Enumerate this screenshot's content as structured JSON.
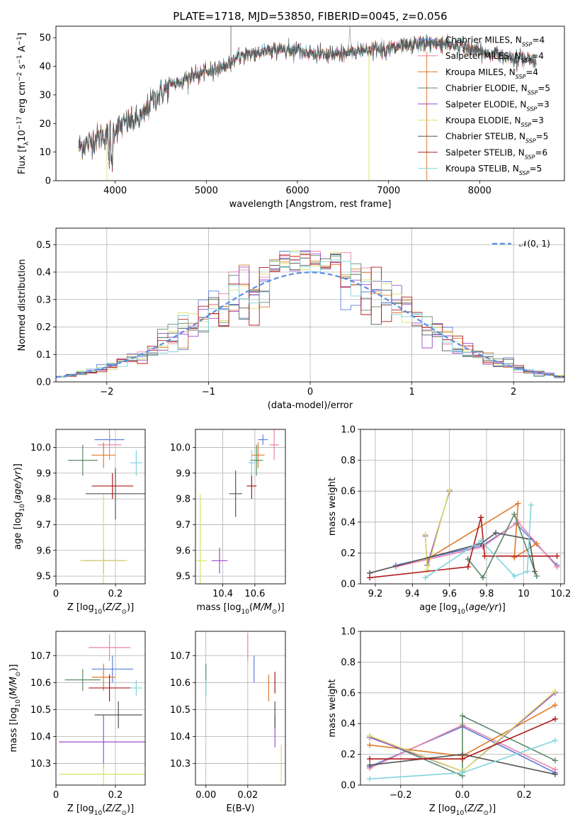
{
  "title": "PLATE=1718, MJD=53850, FIBERID=0045, z=0.056",
  "colors": {
    "Chabrier MILES": "#5b7fdc",
    "Salpeter MILES": "#ee82a8",
    "Kroupa MILES": "#e07a2a",
    "Chabrier ELODIE": "#5b8a68",
    "Salpeter ELODIE": "#9c4ec8",
    "Kroupa ELODIE": "#d8e06a",
    "Chabrier STELIB": "#555555",
    "Salpeter STELIB": "#b01818",
    "Kroupa STELIB": "#80d4de",
    "gauss": "#5b8ee6"
  },
  "chart_data": [
    {
      "type": "line",
      "id": "spectrum",
      "title": "PLATE=1718, MJD=53850, FIBERID=0045, z=0.056",
      "xlabel": "wavelength [Angstrom, rest frame]",
      "ylabel_parts": [
        "Flux [f",
        "λ",
        "10",
        "-17",
        " erg cm",
        "-2",
        " s",
        "-1",
        " A",
        "-1",
        "]"
      ],
      "xlim": [
        3350,
        8930
      ],
      "ylim": [
        0,
        54
      ],
      "xticks": [
        4000,
        5000,
        6000,
        7000,
        8000
      ],
      "yticks": [
        0,
        10,
        20,
        30,
        40,
        50
      ],
      "legend_position": "upper right",
      "legend": [
        {
          "label": "Chabrier MILES",
          "nssp": "4"
        },
        {
          "label": "Salpeter MILES",
          "nssp": "4"
        },
        {
          "label": "Kroupa MILES",
          "nssp": "4"
        },
        {
          "label": "Chabrier ELODIE",
          "nssp": "5"
        },
        {
          "label": "Salpeter ELODIE",
          "nssp": "3"
        },
        {
          "label": "Kroupa ELODIE",
          "nssp": "3"
        },
        {
          "label": "Chabrier STELIB",
          "nssp": "5"
        },
        {
          "label": "Salpeter STELIB",
          "nssp": "6"
        },
        {
          "label": "Kroupa STELIB",
          "nssp": "5"
        }
      ],
      "continuum_x": [
        3600,
        3700,
        3800,
        3900,
        4000,
        4100,
        4200,
        4300,
        4400,
        4600,
        4800,
        5000,
        5200,
        5400,
        5600,
        5800,
        6000,
        6200,
        6400,
        6600,
        6800,
        7000,
        7200,
        7400,
        7600,
        7800,
        8000,
        8200,
        8400,
        8600
      ],
      "continuum_y": [
        12,
        13,
        15,
        16,
        18,
        20,
        21,
        22,
        28,
        33,
        36,
        38,
        40,
        44,
        45,
        46,
        46,
        44,
        44,
        45,
        46,
        46,
        47,
        48,
        48,
        47,
        45,
        44,
        43,
        42
      ],
      "spectrum_range": [
        3600,
        8620
      ]
    },
    {
      "type": "histogram",
      "id": "residuals",
      "xlabel": "(data-model)/error",
      "ylabel": "Normed distribution",
      "xlim": [
        -2.5,
        2.5
      ],
      "ylim": [
        0,
        0.56
      ],
      "xticks": [
        -2,
        -1,
        0,
        1,
        2
      ],
      "yticks": [
        0.0,
        0.1,
        0.2,
        0.3,
        0.4,
        0.5
      ],
      "grid": true,
      "legend_position": "upper right",
      "legend": [
        "𝒩(0, 1)"
      ]
    },
    {
      "type": "scatter",
      "id": "age_vs_Z",
      "xlabel": "Z [log10(Z/Z⊙)]",
      "ylabel": "age  [log10(age/yr)]",
      "xlim": [
        0.0,
        0.3
      ],
      "ylim": [
        9.47,
        10.07
      ],
      "xticks": [
        0.0,
        0.2
      ],
      "yticks": [
        9.5,
        9.6,
        9.7,
        9.8,
        9.9,
        10.0
      ],
      "grid": true,
      "points": [
        {
          "series": "Chabrier MILES",
          "x": 0.18,
          "y": 10.03,
          "xerr": 0.05,
          "yerr": 0.02
        },
        {
          "series": "Salpeter MILES",
          "x": 0.18,
          "y": 10.01,
          "xerr": 0.04,
          "yerr": 0.06
        },
        {
          "series": "Kroupa MILES",
          "x": 0.16,
          "y": 9.97,
          "xerr": 0.04,
          "yerr": 0.05
        },
        {
          "series": "Chabrier ELODIE",
          "x": 0.09,
          "y": 9.95,
          "xerr": 0.05,
          "yerr": 0.06
        },
        {
          "series": "Salpeter ELODIE",
          "x": 0.16,
          "y": 9.56,
          "xerr": 0.07,
          "yerr": 0.05
        },
        {
          "series": "Kroupa ELODIE",
          "x": 0.16,
          "y": 9.56,
          "xerr": 0.08,
          "yerr": 0.26
        },
        {
          "series": "Chabrier STELIB",
          "x": 0.2,
          "y": 9.82,
          "xerr": 0.1,
          "yerr": 0.1
        },
        {
          "series": "Salpeter STELIB",
          "x": 0.19,
          "y": 9.85,
          "xerr": 0.07,
          "yerr": 0.05
        },
        {
          "series": "Kroupa STELIB",
          "x": 0.27,
          "y": 9.94,
          "xerr": 0.02,
          "yerr": 0.05
        }
      ]
    },
    {
      "type": "scatter",
      "id": "age_vs_mass",
      "xlabel": "mass [log10(M/M⊙)]",
      "ylabel": "",
      "xlim": [
        10.23,
        10.79
      ],
      "ylim": [
        9.47,
        10.07
      ],
      "xticks": [
        10.4,
        10.6
      ],
      "xticklabels": [
        "10.4",
        "10.6"
      ],
      "yticks": [
        9.5,
        9.6,
        9.7,
        9.8,
        9.9,
        10.0
      ],
      "grid": true,
      "points": [
        {
          "series": "Chabrier MILES",
          "x": 10.65,
          "y": 10.03,
          "xerr": 0.03,
          "yerr": 0.02
        },
        {
          "series": "Salpeter MILES",
          "x": 10.72,
          "y": 10.01,
          "xerr": 0.03,
          "yerr": 0.06
        },
        {
          "series": "Kroupa MILES",
          "x": 10.62,
          "y": 9.97,
          "xerr": 0.04,
          "yerr": 0.05
        },
        {
          "series": "Chabrier ELODIE",
          "x": 10.61,
          "y": 9.95,
          "xerr": 0.04,
          "yerr": 0.06
        },
        {
          "series": "Salpeter ELODIE",
          "x": 10.38,
          "y": 9.56,
          "xerr": 0.05,
          "yerr": 0.05
        },
        {
          "series": "Kroupa ELODIE",
          "x": 10.26,
          "y": 9.56,
          "xerr": 0.04,
          "yerr": 0.26
        },
        {
          "series": "Chabrier STELIB",
          "x": 10.48,
          "y": 9.82,
          "xerr": 0.04,
          "yerr": 0.09
        },
        {
          "series": "Salpeter STELIB",
          "x": 10.58,
          "y": 9.85,
          "xerr": 0.03,
          "yerr": 0.05
        },
        {
          "series": "Kroupa STELIB",
          "x": 10.58,
          "y": 9.94,
          "xerr": 0.02,
          "yerr": 0.05
        }
      ]
    },
    {
      "type": "line",
      "id": "mass_weight_vs_age",
      "xlabel": "age  [log10(age/yr)]",
      "ylabel": "mass weight",
      "xlim": [
        9.12,
        10.22
      ],
      "ylim": [
        0.0,
        1.0
      ],
      "xticks": [
        9.2,
        9.4,
        9.6,
        9.8,
        10.0,
        10.2
      ],
      "yticks": [
        0.0,
        0.2,
        0.4,
        0.6,
        0.8,
        1.0
      ],
      "grid": true,
      "series": [
        {
          "name": "Chabrier MILES",
          "x": [
            9.31,
            9.78,
            9.96,
            10.18
          ],
          "y": [
            0.12,
            0.25,
            0.39,
            0.12
          ]
        },
        {
          "name": "Salpeter MILES",
          "x": [
            9.31,
            9.78,
            9.97,
            10.18
          ],
          "y": [
            0.11,
            0.24,
            0.4,
            0.11
          ]
        },
        {
          "name": "Kroupa MILES",
          "x": [
            9.48,
            9.97,
            9.95,
            10.07
          ],
          "y": [
            0.16,
            0.52,
            0.17,
            0.26
          ]
        },
        {
          "name": "Chabrier ELODIE",
          "x": [
            9.7,
            9.78,
            9.95,
            10.07
          ],
          "y": [
            0.16,
            0.04,
            0.45,
            0.05
          ]
        },
        {
          "name": "Salpeter ELODIE",
          "x": [
            9.47,
            9.48,
            9.6
          ],
          "y": [
            0.31,
            0.12,
            0.6
          ]
        },
        {
          "name": "Kroupa ELODIE",
          "x": [
            9.47,
            9.48,
            9.6
          ],
          "y": [
            0.32,
            0.09,
            0.61
          ]
        },
        {
          "name": "Chabrier STELIB",
          "x": [
            9.17,
            9.77,
            9.85,
            10.03,
            10.06
          ],
          "y": [
            0.07,
            0.26,
            0.33,
            0.29,
            0.08
          ]
        },
        {
          "name": "Salpeter STELIB",
          "x": [
            9.17,
            9.7,
            9.77,
            9.79,
            10.18
          ],
          "y": [
            0.04,
            0.11,
            0.43,
            0.18,
            0.18
          ]
        },
        {
          "name": "Kroupa STELIB",
          "x": [
            9.47,
            9.77,
            9.95,
            10.02,
            10.04
          ],
          "y": [
            0.04,
            0.28,
            0.05,
            0.08,
            0.51
          ]
        }
      ]
    },
    {
      "type": "scatter",
      "id": "mass_vs_Z",
      "xlabel": "Z [log10(Z/Z⊙)]",
      "ylabel": "mass [log10(M/M⊙)]",
      "xlim": [
        0.0,
        0.3
      ],
      "ylim": [
        10.22,
        10.79
      ],
      "xticks": [
        0.0,
        0.2
      ],
      "yticks": [
        10.3,
        10.4,
        10.5,
        10.6,
        10.7
      ],
      "grid": true,
      "points": [
        {
          "series": "Chabrier MILES",
          "x": 0.19,
          "y": 10.65,
          "xerr": 0.07,
          "yerr": 0.05
        },
        {
          "series": "Salpeter MILES",
          "x": 0.18,
          "y": 10.73,
          "xerr": 0.07,
          "yerr": 0.05
        },
        {
          "series": "Kroupa MILES",
          "x": 0.16,
          "y": 10.62,
          "xerr": 0.04,
          "yerr": 0.05
        },
        {
          "series": "Chabrier ELODIE",
          "x": 0.09,
          "y": 10.61,
          "xerr": 0.06,
          "yerr": 0.04
        },
        {
          "series": "Salpeter ELODIE",
          "x": 0.16,
          "y": 10.38,
          "xerr": 0.15,
          "yerr": 0.1
        },
        {
          "series": "Kroupa ELODIE",
          "x": 0.16,
          "y": 10.26,
          "xerr": 0.15,
          "yerr": 0.04
        },
        {
          "series": "Chabrier STELIB",
          "x": 0.21,
          "y": 10.48,
          "xerr": 0.08,
          "yerr": 0.05
        },
        {
          "series": "Salpeter STELIB",
          "x": 0.18,
          "y": 10.58,
          "xerr": 0.07,
          "yerr": 0.05
        },
        {
          "series": "Kroupa STELIB",
          "x": 0.27,
          "y": 10.58,
          "xerr": 0.02,
          "yerr": 0.03
        }
      ]
    },
    {
      "type": "scatter",
      "id": "mass_vs_EBV",
      "xlabel": "E(B-V)",
      "ylabel": "",
      "xlim": [
        -0.005,
        0.038
      ],
      "ylim": [
        10.22,
        10.79
      ],
      "xticks": [
        0.0,
        0.02
      ],
      "xticklabels": [
        "0.00",
        "0.02"
      ],
      "yticks": [
        10.3,
        10.4,
        10.5,
        10.6,
        10.7
      ],
      "grid": true,
      "points": [
        {
          "series": "Chabrier MILES",
          "x": 0.023,
          "y": 10.65,
          "xerr": 0.0,
          "yerr": 0.05
        },
        {
          "series": "Salpeter MILES",
          "x": 0.02,
          "y": 10.73,
          "xerr": 0.0,
          "yerr": 0.05
        },
        {
          "series": "Kroupa MILES",
          "x": 0.03,
          "y": 10.58,
          "xerr": 0.0,
          "yerr": 0.05
        },
        {
          "series": "Chabrier ELODIE",
          "x": 0.0,
          "y": 10.61,
          "xerr": 0.0,
          "yerr": 0.06
        },
        {
          "series": "Salpeter ELODIE",
          "x": 0.033,
          "y": 10.42,
          "xerr": 0.0,
          "yerr": 0.06
        },
        {
          "series": "Kroupa ELODIE",
          "x": 0.036,
          "y": 10.3,
          "xerr": 0.0,
          "yerr": 0.07
        },
        {
          "series": "Chabrier STELIB",
          "x": 0.033,
          "y": 10.48,
          "xerr": 0.0,
          "yerr": 0.05
        },
        {
          "series": "Salpeter STELIB",
          "x": 0.033,
          "y": 10.6,
          "xerr": 0.0,
          "yerr": 0.04
        },
        {
          "series": "Kroupa STELIB",
          "x": 0.0,
          "y": 10.58,
          "xerr": 0.0,
          "yerr": 0.03
        }
      ]
    },
    {
      "type": "line",
      "id": "mass_weight_vs_Z",
      "xlabel": "Z [log10(Z/Z⊙)]",
      "ylabel": "mass weight",
      "xlim": [
        -0.33,
        0.33
      ],
      "ylim": [
        0.0,
        1.0
      ],
      "xticks": [
        -0.2,
        0.0,
        0.2
      ],
      "xticklabels": [
        "−0.2",
        "0.0",
        "0.2"
      ],
      "yticks": [
        0.0,
        0.2,
        0.4,
        0.6,
        0.8,
        1.0
      ],
      "grid": true,
      "series": [
        {
          "name": "Chabrier MILES",
          "x": [
            -0.3,
            0.0,
            0.3
          ],
          "y": [
            0.12,
            0.38,
            0.08
          ]
        },
        {
          "name": "Salpeter MILES",
          "x": [
            -0.3,
            0.0,
            0.3
          ],
          "y": [
            0.11,
            0.39,
            0.1
          ]
        },
        {
          "name": "Kroupa MILES",
          "x": [
            -0.3,
            0.0,
            0.3
          ],
          "y": [
            0.26,
            0.19,
            0.52
          ]
        },
        {
          "name": "Chabrier ELODIE",
          "x": [
            -0.3,
            0.0,
            0.0,
            0.3
          ],
          "y": [
            0.32,
            0.06,
            0.45,
            0.16
          ]
        },
        {
          "name": "Salpeter ELODIE",
          "x": [
            -0.3,
            0.0,
            0.3
          ],
          "y": [
            0.31,
            0.09,
            0.6
          ]
        },
        {
          "name": "Kroupa ELODIE",
          "x": [
            -0.3,
            0.0,
            0.3
          ],
          "y": [
            0.32,
            0.09,
            0.61
          ]
        },
        {
          "name": "Chabrier STELIB",
          "x": [
            -0.3,
            0.0,
            0.3
          ],
          "y": [
            0.13,
            0.2,
            0.07
          ]
        },
        {
          "name": "Salpeter STELIB",
          "x": [
            -0.3,
            0.0,
            0.3
          ],
          "y": [
            0.17,
            0.17,
            0.43
          ]
        },
        {
          "name": "Kroupa STELIB",
          "x": [
            -0.3,
            0.0,
            0.3
          ],
          "y": [
            0.04,
            0.08,
            0.29
          ]
        }
      ]
    }
  ]
}
